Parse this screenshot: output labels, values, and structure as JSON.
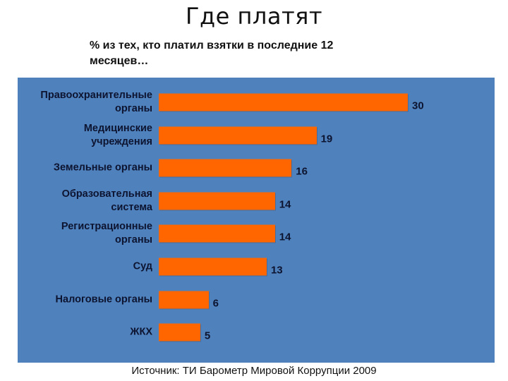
{
  "title": "Где  платят",
  "subtitle": "% из тех, кто платил взятки в последние 12 месяцев…",
  "source": "Источник: ТИ Барометр Мировой Коррупции 2009",
  "colors": {
    "panel": "#4f81bd",
    "bar": "#ff6600",
    "text": "#0d1430"
  },
  "chart_data": {
    "type": "bar",
    "orientation": "horizontal",
    "title": "Где платят",
    "subtitle": "% из тех, кто платил взятки в последние 12 месяцев…",
    "categories": [
      "Правоохранительные органы",
      "Медицинские учреждения",
      "Земельные органы",
      "Образовательная система",
      "Регистрационные органы",
      "Суд",
      "Налоговые органы",
      "ЖКХ"
    ],
    "values": [
      30,
      19,
      16,
      14,
      14,
      13,
      6,
      5
    ],
    "xlabel": "",
    "ylabel": "",
    "xlim": [
      0,
      30
    ],
    "grid": false,
    "legend": "none",
    "data_labels": true,
    "source": "Источник: ТИ Барометр Мировой Коррупции 2009"
  },
  "rows": [
    {
      "label_lines": [
        "Правоохранительные",
        "органы"
      ],
      "value": 30,
      "display": "30"
    },
    {
      "label_lines": [
        "Медицинские",
        "учреждения"
      ],
      "value": 19,
      "display": "19"
    },
    {
      "label_lines": [
        "Земельные органы"
      ],
      "value": 16,
      "display": "16"
    },
    {
      "label_lines": [
        "Образовательная",
        "система"
      ],
      "value": 14,
      "display": "14"
    },
    {
      "label_lines": [
        "Регистрационные",
        "органы"
      ],
      "value": 14,
      "display": "14"
    },
    {
      "label_lines": [
        "Суд"
      ],
      "value": 13,
      "display": "13"
    },
    {
      "label_lines": [
        "Налоговые органы"
      ],
      "value": 6,
      "display": "6"
    },
    {
      "label_lines": [
        "ЖКХ"
      ],
      "value": 5,
      "display": "5"
    }
  ]
}
